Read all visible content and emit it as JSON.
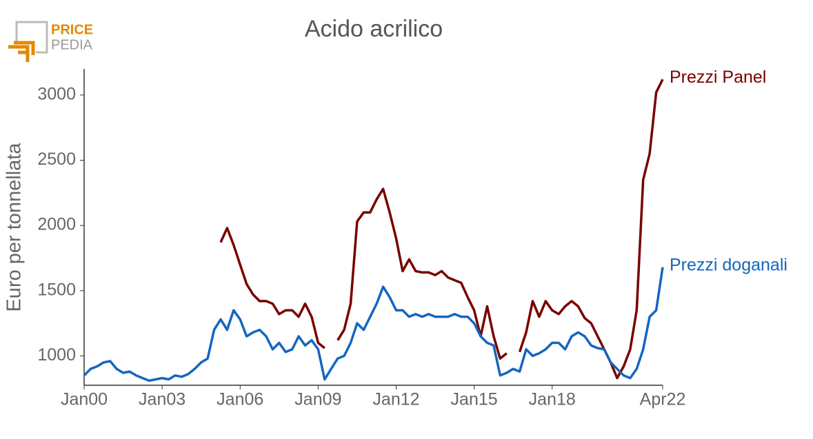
{
  "logo": {
    "top": "PRICE",
    "bottom": "PEDIA"
  },
  "chart_data": {
    "type": "line",
    "title": "Acido acrilico",
    "y_label": "Euro per tonnellata",
    "x": [
      "Jan00",
      "Apr00",
      "Jul00",
      "Oct00",
      "Jan01",
      "Apr01",
      "Jul01",
      "Oct01",
      "Jan02",
      "Apr02",
      "Jul02",
      "Oct02",
      "Jan03",
      "Apr03",
      "Jul03",
      "Oct03",
      "Jan04",
      "Apr04",
      "Jul04",
      "Oct04",
      "Jan05",
      "Apr05",
      "Jul05",
      "Oct05",
      "Jan06",
      "Apr06",
      "Jul06",
      "Oct06",
      "Jan07",
      "Apr07",
      "Jul07",
      "Oct07",
      "Jan08",
      "Apr08",
      "Jul08",
      "Oct08",
      "Jan09",
      "Apr09",
      "Jul09",
      "Oct09",
      "Jan10",
      "Apr10",
      "Jul10",
      "Oct10",
      "Jan11",
      "Apr11",
      "Jul11",
      "Oct11",
      "Jan12",
      "Apr12",
      "Jul12",
      "Oct12",
      "Jan13",
      "Apr13",
      "Jul13",
      "Oct13",
      "Jan14",
      "Apr14",
      "Jul14",
      "Oct14",
      "Jan15",
      "Apr15",
      "Jul15",
      "Oct15",
      "Jan16",
      "Apr16",
      "Jul16",
      "Oct16",
      "Jan17",
      "Apr17",
      "Jul17",
      "Oct17",
      "Jan18",
      "Apr18",
      "Jul18",
      "Oct18",
      "Jan19",
      "Apr19",
      "Jul19",
      "Oct19",
      "Jan20",
      "Apr20",
      "Jul20",
      "Oct20",
      "Jan21",
      "Apr21",
      "Jul21",
      "Oct21",
      "Jan22",
      "Apr22"
    ],
    "xticks": [
      "Jan00",
      "Jan03",
      "Jan06",
      "Jan09",
      "Jan12",
      "Jan15",
      "Jan18",
      "Apr22"
    ],
    "ylim": [
      775,
      3200
    ],
    "yticks": [
      1000,
      1500,
      2000,
      2500,
      3000
    ],
    "series": [
      {
        "name": "Prezzi Panel",
        "color": "#780000",
        "values": [
          null,
          null,
          null,
          null,
          null,
          null,
          null,
          null,
          null,
          null,
          null,
          null,
          null,
          null,
          null,
          null,
          null,
          null,
          null,
          null,
          null,
          1870,
          1980,
          1850,
          1700,
          1550,
          1470,
          1420,
          1420,
          1400,
          1320,
          1350,
          1350,
          1300,
          1400,
          1300,
          1100,
          1060,
          null,
          1120,
          1200,
          1400,
          2030,
          2100,
          2100,
          2200,
          2280,
          2100,
          1900,
          1650,
          1740,
          1650,
          1640,
          1640,
          1620,
          1650,
          1600,
          1580,
          1560,
          1450,
          1350,
          1150,
          1380,
          1150,
          980,
          1020,
          null,
          1030,
          1180,
          1420,
          1300,
          1420,
          1350,
          1320,
          1380,
          1420,
          1380,
          1290,
          1250,
          1150,
          1050,
          950,
          830,
          920,
          1050,
          1350,
          2350,
          2550,
          3020,
          3120
        ]
      },
      {
        "name": "Prezzi doganali",
        "color": "#1565c0",
        "values": [
          850,
          900,
          920,
          950,
          960,
          900,
          870,
          880,
          850,
          830,
          810,
          820,
          830,
          820,
          850,
          840,
          860,
          900,
          950,
          980,
          1200,
          1280,
          1200,
          1350,
          1280,
          1150,
          1180,
          1200,
          1150,
          1050,
          1100,
          1030,
          1050,
          1150,
          1080,
          1120,
          1050,
          820,
          900,
          980,
          1000,
          1100,
          1250,
          1200,
          1300,
          1400,
          1530,
          1450,
          1350,
          1350,
          1300,
          1320,
          1300,
          1320,
          1300,
          1300,
          1300,
          1320,
          1300,
          1300,
          1250,
          1150,
          1100,
          1080,
          850,
          870,
          900,
          880,
          1050,
          1000,
          1020,
          1050,
          1100,
          1100,
          1050,
          1150,
          1180,
          1150,
          1080,
          1060,
          1050,
          950,
          900,
          850,
          830,
          900,
          1050,
          1300,
          1350,
          1680
        ]
      }
    ]
  }
}
